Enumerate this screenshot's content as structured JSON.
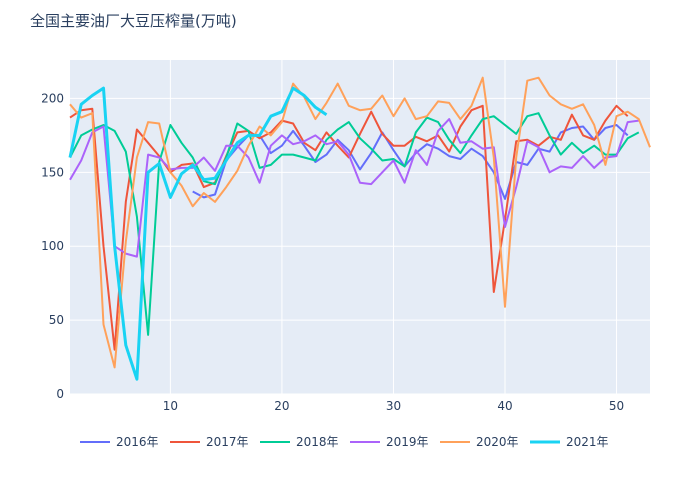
{
  "chart_data": {
    "type": "line",
    "title": "全国主要油厂大豆压榨量(万吨)",
    "xlabel": "",
    "ylabel": "",
    "xlim": [
      1,
      53
    ],
    "ylim": [
      0,
      226
    ],
    "xticks": [
      10,
      20,
      30,
      40,
      50
    ],
    "yticks": [
      0,
      50,
      100,
      150,
      200
    ],
    "legend_position": "bottom",
    "grid": true,
    "series": [
      {
        "name": "2016年",
        "color": "#636efa",
        "width": 2,
        "x": [
          12,
          13,
          14,
          15,
          16,
          17,
          18,
          19,
          20,
          21,
          22,
          23,
          24,
          25,
          26,
          27,
          28,
          29,
          30,
          31,
          32,
          33,
          34,
          35,
          36,
          37,
          38,
          39,
          40,
          41,
          42,
          43,
          44,
          45,
          46,
          47,
          48,
          49,
          50,
          51
        ],
        "y": [
          137,
          133,
          135,
          158,
          167,
          175,
          175,
          163,
          168,
          178,
          168,
          157,
          162,
          172,
          165,
          152,
          163,
          177,
          165,
          154,
          163,
          169,
          166,
          161,
          159,
          166,
          161,
          150,
          132,
          157,
          155,
          166,
          164,
          177,
          180,
          181,
          172,
          180,
          182,
          175
        ]
      },
      {
        "name": "2017年",
        "color": "#ef553b",
        "width": 2,
        "x": [
          1,
          2,
          3,
          4,
          5,
          6,
          7,
          8,
          9,
          10,
          11,
          12,
          13,
          14,
          15,
          16,
          17,
          18,
          19,
          20,
          21,
          22,
          23,
          24,
          25,
          26,
          27,
          28,
          29,
          30,
          31,
          32,
          33,
          34,
          35,
          36,
          37,
          38,
          39,
          40,
          41,
          42,
          43,
          44,
          45,
          46,
          47,
          48,
          49,
          50,
          51
        ],
        "y": [
          187,
          192,
          193,
          100,
          30,
          130,
          179,
          170,
          161,
          150,
          155,
          156,
          140,
          143,
          161,
          177,
          178,
          173,
          177,
          185,
          183,
          170,
          165,
          177,
          168,
          160,
          176,
          191,
          176,
          168,
          168,
          174,
          171,
          175,
          164,
          181,
          192,
          195,
          69,
          118,
          171,
          172,
          168,
          174,
          172,
          189,
          175,
          172,
          185,
          195,
          188
        ]
      },
      {
        "name": "2018年",
        "color": "#00cc96",
        "width": 2,
        "x": [
          1,
          2,
          3,
          4,
          5,
          6,
          7,
          8,
          9,
          10,
          11,
          12,
          13,
          14,
          15,
          16,
          17,
          18,
          19,
          20,
          21,
          22,
          23,
          24,
          25,
          26,
          27,
          28,
          29,
          30,
          31,
          32,
          33,
          34,
          35,
          36,
          37,
          38,
          39,
          40,
          41,
          42,
          43,
          44,
          45,
          46,
          47,
          48,
          49,
          50,
          51,
          52
        ],
        "y": [
          160,
          175,
          179,
          182,
          178,
          164,
          120,
          40,
          157,
          182,
          170,
          160,
          144,
          142,
          160,
          183,
          178,
          153,
          155,
          162,
          162,
          160,
          158,
          172,
          179,
          184,
          173,
          166,
          158,
          159,
          154,
          177,
          187,
          184,
          172,
          163,
          175,
          186,
          188,
          182,
          176,
          188,
          190,
          175,
          162,
          170,
          163,
          168,
          162,
          162,
          173,
          177
        ]
      },
      {
        "name": "2019年",
        "color": "#ab63fa",
        "width": 2,
        "x": [
          1,
          2,
          3,
          4,
          5,
          6,
          7,
          8,
          9,
          10,
          11,
          12,
          13,
          14,
          15,
          16,
          17,
          18,
          19,
          20,
          21,
          22,
          23,
          24,
          25,
          26,
          27,
          28,
          29,
          30,
          31,
          32,
          33,
          34,
          35,
          36,
          37,
          38,
          39,
          40,
          41,
          42,
          43,
          44,
          45,
          46,
          47,
          48,
          49,
          50,
          51,
          52
        ],
        "y": [
          145,
          158,
          177,
          181,
          100,
          95,
          93,
          162,
          160,
          152,
          153,
          153,
          160,
          151,
          168,
          168,
          160,
          143,
          168,
          175,
          169,
          171,
          175,
          169,
          171,
          162,
          143,
          142,
          150,
          158,
          143,
          165,
          155,
          178,
          186,
          170,
          171,
          166,
          167,
          113,
          140,
          171,
          167,
          150,
          154,
          153,
          161,
          153,
          160,
          161,
          184,
          185
        ]
      },
      {
        "name": "2020年",
        "color": "#ffa15a",
        "width": 2,
        "x": [
          1,
          2,
          3,
          4,
          5,
          6,
          7,
          8,
          9,
          10,
          11,
          12,
          13,
          14,
          15,
          16,
          17,
          18,
          19,
          20,
          21,
          22,
          23,
          24,
          25,
          26,
          27,
          28,
          29,
          30,
          31,
          32,
          33,
          34,
          35,
          36,
          37,
          38,
          39,
          40,
          41,
          42,
          43,
          44,
          45,
          46,
          47,
          48,
          49,
          50,
          51,
          52,
          53
        ],
        "y": [
          196,
          187,
          190,
          47,
          18,
          103,
          160,
          184,
          183,
          150,
          141,
          127,
          136,
          130,
          140,
          151,
          168,
          181,
          175,
          184,
          210,
          201,
          186,
          197,
          210,
          195,
          192,
          193,
          202,
          188,
          200,
          186,
          188,
          198,
          197,
          186,
          195,
          214,
          160,
          59,
          160,
          212,
          214,
          202,
          196,
          193,
          196,
          182,
          155,
          188,
          191,
          186,
          167
        ]
      },
      {
        "name": "2021年",
        "color": "#19d3f3",
        "width": 3,
        "x": [
          1,
          2,
          3,
          4,
          5,
          6,
          7,
          8,
          9,
          10,
          11,
          12,
          13,
          14,
          15,
          16,
          17,
          18,
          19,
          20,
          21,
          22,
          23,
          24
        ],
        "y": [
          160,
          196,
          202,
          207,
          100,
          33,
          10,
          150,
          156,
          133,
          149,
          155,
          145,
          146,
          158,
          170,
          175,
          175,
          188,
          191,
          207,
          202,
          194,
          189
        ]
      }
    ]
  }
}
